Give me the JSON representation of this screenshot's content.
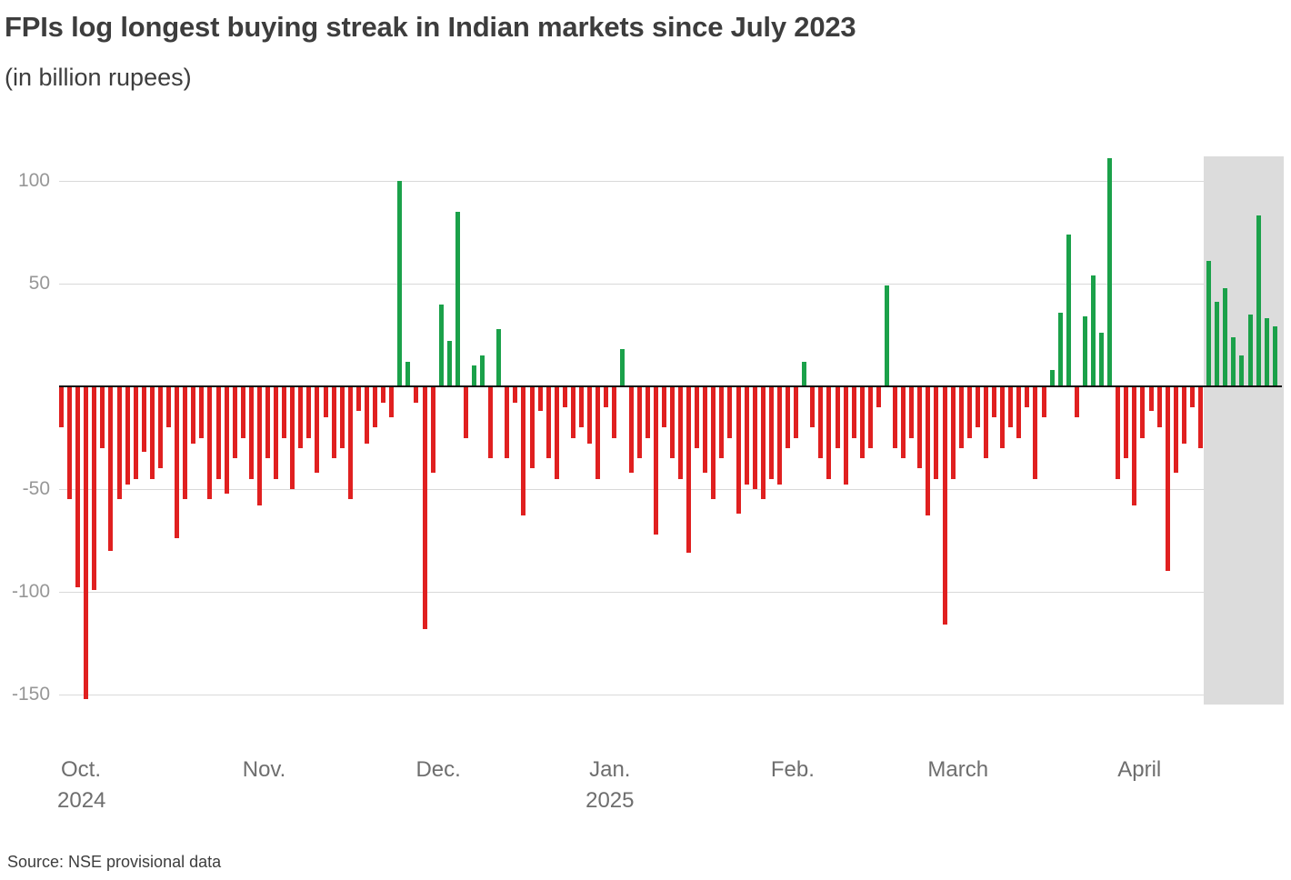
{
  "chart_data": {
    "type": "bar",
    "title": "FPIs log longest buying streak in Indian markets since July 2023",
    "subtitle": "(in billion rupees)",
    "source": "Source: NSE provisional data",
    "xlabel": "",
    "ylabel": "",
    "ylim": [
      -158,
      112
    ],
    "yticks": [
      100,
      50,
      -50,
      -100,
      -150
    ],
    "grid": true,
    "legend": "none",
    "colors": {
      "positive": "#1ba14a",
      "negative": "#e02020",
      "highlight_band": "#dcdcdc",
      "baseline": "#111111",
      "gridline": "#d9d9d9",
      "title_text": "#3d3d3d",
      "tick_text": "#979797",
      "month_text": "#6e6e6e"
    },
    "months": [
      {
        "label": "Oct.",
        "sublabel": "2024",
        "start_index": 0
      },
      {
        "label": "Nov.",
        "sublabel": "",
        "start_index": 22
      },
      {
        "label": "Dec.",
        "sublabel": "",
        "start_index": 43
      },
      {
        "label": "Jan.",
        "sublabel": "2025",
        "start_index": 64
      },
      {
        "label": "Feb.",
        "sublabel": "",
        "start_index": 86
      },
      {
        "label": "March",
        "sublabel": "",
        "start_index": 105
      },
      {
        "label": "April",
        "sublabel": "",
        "start_index": 128
      }
    ],
    "highlight_band": {
      "start_index": 139,
      "end_index": 147
    },
    "values": [
      -20,
      -55,
      -98,
      -152,
      -99,
      -30,
      -80,
      -55,
      -48,
      -45,
      -32,
      -45,
      -40,
      -20,
      -74,
      -55,
      -28,
      -25,
      -55,
      -45,
      -52,
      -35,
      -25,
      -45,
      -58,
      -35,
      -45,
      -25,
      -50,
      -30,
      -25,
      -42,
      -15,
      -35,
      -30,
      -55,
      -12,
      -28,
      -20,
      -8,
      -15,
      100,
      12,
      -8,
      -118,
      -42,
      40,
      22,
      85,
      -25,
      10,
      15,
      -35,
      28,
      -35,
      -8,
      -63,
      -40,
      -12,
      -35,
      -45,
      -10,
      -25,
      -20,
      -28,
      -45,
      -10,
      -25,
      18,
      -42,
      -35,
      -25,
      -72,
      -20,
      -35,
      -45,
      -81,
      -30,
      -42,
      -55,
      -35,
      -25,
      -62,
      -48,
      -50,
      -55,
      -45,
      -48,
      -30,
      -25,
      12,
      -20,
      -35,
      -45,
      -30,
      -48,
      -25,
      -35,
      -30,
      -10,
      49,
      -30,
      -35,
      -25,
      -40,
      -63,
      -45,
      -116,
      -45,
      -30,
      -25,
      -20,
      -35,
      -15,
      -30,
      -20,
      -25,
      -10,
      -45,
      -15,
      8,
      36,
      74,
      -15,
      34,
      54,
      26,
      111,
      -45,
      -35,
      -58,
      -25,
      -12,
      -20,
      -90,
      -42,
      -28,
      -10,
      -30,
      61,
      41,
      48,
      24,
      15,
      35,
      83,
      33,
      29
    ]
  }
}
